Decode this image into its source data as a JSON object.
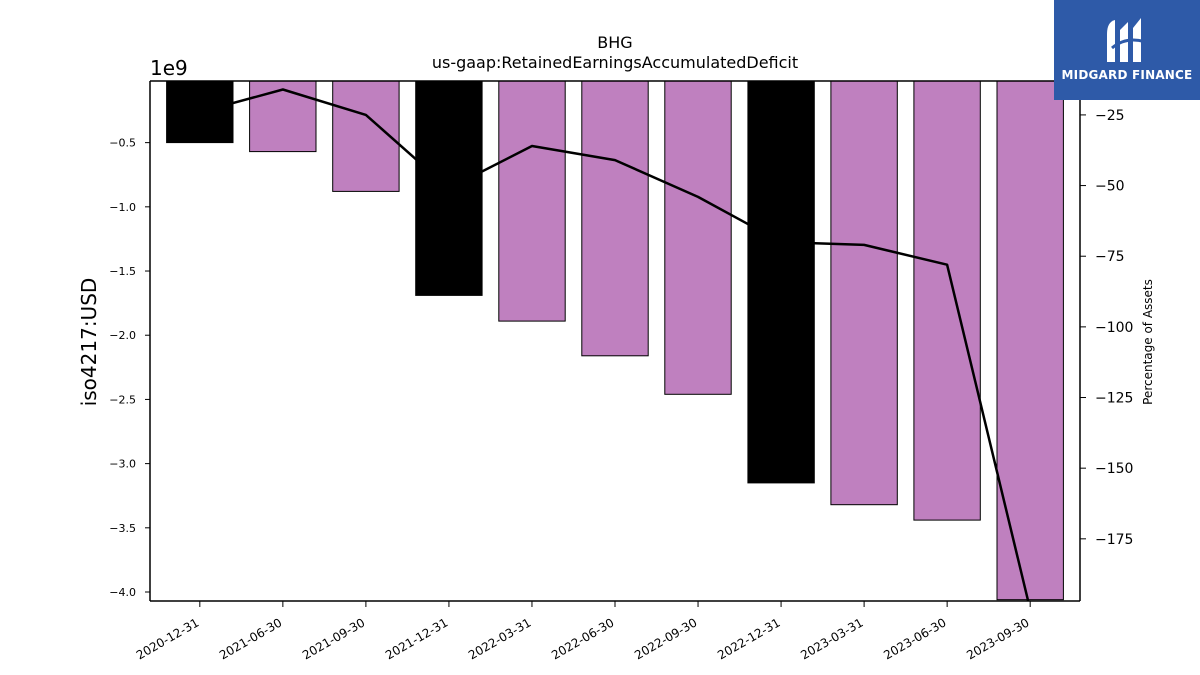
{
  "brand": {
    "name": "MIDGARD FINANCE",
    "logo_icon": "midgard-m-icon",
    "background": "#2e5aa8"
  },
  "chart_data": {
    "type": "bar",
    "title": "BHG",
    "subtitle": "us-gaap:RetainedEarningsAccumulatedDeficit",
    "xlabel": "",
    "ylabel": "iso4217:USD",
    "y_offset_label": "1e9",
    "y2label": "Percentage of Assets",
    "categories": [
      "2020-12-31",
      "2021-06-30",
      "2021-09-30",
      "2021-12-31",
      "2022-03-31",
      "2022-06-30",
      "2022-09-30",
      "2022-12-31",
      "2023-03-31",
      "2023-06-30",
      "2023-09-30"
    ],
    "series": [
      {
        "values": [
          -0.5,
          -0.57,
          -0.88,
          -1.69,
          -1.89,
          -2.16,
          -2.46,
          -3.15,
          -3.32,
          -3.44,
          -4.06
        ],
        "bar_colors": [
          "#000000",
          "#bf80bf",
          "#bf80bf",
          "#000000",
          "#bf80bf",
          "#bf80bf",
          "#bf80bf",
          "#000000",
          "#bf80bf",
          "#bf80bf",
          "#bf80bf"
        ]
      }
    ],
    "line": {
      "axis": "right",
      "color": "#000000",
      "values": [
        -24,
        -16,
        -25,
        -51,
        -36,
        -41,
        -54,
        -70,
        -71,
        -78,
        -200
      ]
    },
    "ylim": [
      -4.07,
      -0.02
    ],
    "y2lim": [
      -197,
      -13
    ],
    "yticks": [
      -0.5,
      -1.0,
      -1.5,
      -2.0,
      -2.5,
      -3.0,
      -3.5,
      -4.0
    ],
    "yticklabels": [
      "−0.5",
      "−1.0",
      "−1.5",
      "−2.0",
      "−2.5",
      "−3.0",
      "−3.5",
      "−4.0"
    ],
    "y2ticks": [
      -25,
      -50,
      -75,
      -100,
      -125,
      -150,
      -175
    ],
    "y2ticklabels": [
      "−25",
      "−50",
      "−75",
      "−100",
      "−125",
      "−150",
      "−175"
    ],
    "grid": false,
    "legend": "none"
  }
}
